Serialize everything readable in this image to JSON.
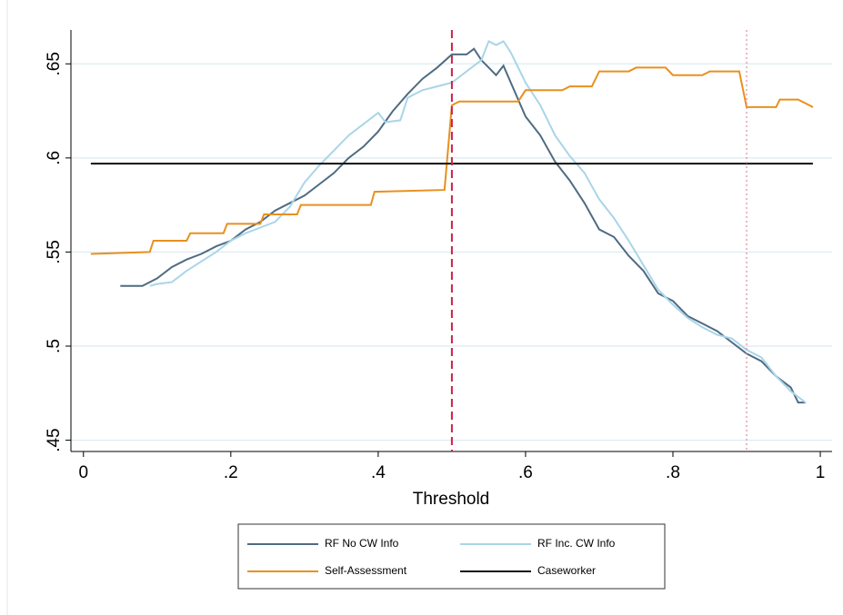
{
  "chart_data": {
    "type": "line",
    "x_label": "Threshold",
    "xlim": [
      -0.017,
      1.016
    ],
    "ylim": [
      0.444,
      0.668
    ],
    "xticks": [
      0,
      {
        "value": 0.2,
        "label": ".2"
      },
      {
        "value": 0.4,
        "label": ".4"
      },
      {
        "value": 0.6,
        "label": ".6"
      },
      {
        "value": 0.8,
        "label": ".8"
      },
      1
    ],
    "yticks": [
      {
        "value": 0.45,
        "label": ".45"
      },
      {
        "value": 0.5,
        "label": ".5"
      },
      {
        "value": 0.55,
        "label": ".55"
      },
      {
        "value": 0.6,
        "label": ".6"
      },
      {
        "value": 0.65,
        "label": ".65"
      }
    ],
    "grid": true,
    "reference_lines": [
      {
        "x": 0.5,
        "color": "#c8234b",
        "style": "dashed"
      },
      {
        "x": 0.9,
        "color": "#d98aa0",
        "style": "dotted"
      }
    ],
    "series": [
      {
        "name": "RF No CW Info",
        "color": "#4f6b82",
        "x": [
          0.05,
          0.08,
          0.1,
          0.12,
          0.14,
          0.16,
          0.18,
          0.2,
          0.22,
          0.24,
          0.26,
          0.28,
          0.3,
          0.32,
          0.34,
          0.36,
          0.38,
          0.4,
          0.42,
          0.44,
          0.46,
          0.48,
          0.5,
          0.52,
          0.53,
          0.54,
          0.56,
          0.57,
          0.58,
          0.6,
          0.62,
          0.64,
          0.66,
          0.68,
          0.7,
          0.72,
          0.74,
          0.76,
          0.78,
          0.8,
          0.82,
          0.84,
          0.86,
          0.88,
          0.9,
          0.92,
          0.94,
          0.96,
          0.97,
          0.98
        ],
        "values": [
          0.532,
          0.532,
          0.536,
          0.542,
          0.546,
          0.549,
          0.553,
          0.556,
          0.562,
          0.566,
          0.572,
          0.576,
          0.58,
          0.586,
          0.592,
          0.6,
          0.606,
          0.614,
          0.625,
          0.634,
          0.642,
          0.648,
          0.655,
          0.655,
          0.658,
          0.652,
          0.644,
          0.649,
          0.64,
          0.622,
          0.612,
          0.598,
          0.588,
          0.576,
          0.562,
          0.558,
          0.548,
          0.54,
          0.528,
          0.524,
          0.516,
          0.512,
          0.508,
          0.502,
          0.496,
          0.492,
          0.484,
          0.478,
          0.47,
          0.47
        ]
      },
      {
        "name": "RF Inc. CW Info",
        "color": "#a9d5e8",
        "x": [
          0.09,
          0.1,
          0.12,
          0.14,
          0.16,
          0.18,
          0.2,
          0.22,
          0.24,
          0.26,
          0.28,
          0.3,
          0.32,
          0.34,
          0.36,
          0.38,
          0.4,
          0.41,
          0.43,
          0.44,
          0.46,
          0.48,
          0.5,
          0.52,
          0.54,
          0.55,
          0.56,
          0.57,
          0.58,
          0.6,
          0.62,
          0.64,
          0.66,
          0.68,
          0.7,
          0.72,
          0.74,
          0.76,
          0.78,
          0.8,
          0.82,
          0.84,
          0.86,
          0.88,
          0.9,
          0.92,
          0.94,
          0.96,
          0.98
        ],
        "values": [
          0.532,
          0.533,
          0.534,
          0.54,
          0.545,
          0.55,
          0.556,
          0.56,
          0.563,
          0.566,
          0.574,
          0.587,
          0.596,
          0.604,
          0.612,
          0.618,
          0.624,
          0.619,
          0.62,
          0.632,
          0.636,
          0.638,
          0.64,
          0.646,
          0.652,
          0.662,
          0.66,
          0.662,
          0.656,
          0.64,
          0.628,
          0.612,
          0.601,
          0.592,
          0.578,
          0.568,
          0.556,
          0.543,
          0.53,
          0.522,
          0.515,
          0.51,
          0.506,
          0.504,
          0.498,
          0.494,
          0.484,
          0.476,
          0.47
        ]
      },
      {
        "name": "Self-Assessment",
        "color": "#e8901f",
        "x": [
          0.01,
          0.09,
          0.095,
          0.14,
          0.145,
          0.19,
          0.195,
          0.24,
          0.245,
          0.29,
          0.295,
          0.39,
          0.395,
          0.49,
          0.5,
          0.51,
          0.59,
          0.6,
          0.65,
          0.66,
          0.69,
          0.7,
          0.74,
          0.75,
          0.79,
          0.8,
          0.84,
          0.85,
          0.89,
          0.9,
          0.94,
          0.945,
          0.97,
          0.99
        ],
        "values": [
          0.549,
          0.55,
          0.556,
          0.556,
          0.56,
          0.56,
          0.565,
          0.565,
          0.57,
          0.57,
          0.575,
          0.575,
          0.582,
          0.583,
          0.628,
          0.63,
          0.63,
          0.636,
          0.636,
          0.638,
          0.638,
          0.646,
          0.646,
          0.648,
          0.648,
          0.644,
          0.644,
          0.646,
          0.646,
          0.627,
          0.627,
          0.631,
          0.631,
          0.627
        ]
      },
      {
        "name": "Caseworker",
        "color": "#111111",
        "x": [
          0.01,
          0.99
        ],
        "values": [
          0.597,
          0.597
        ]
      }
    ]
  }
}
